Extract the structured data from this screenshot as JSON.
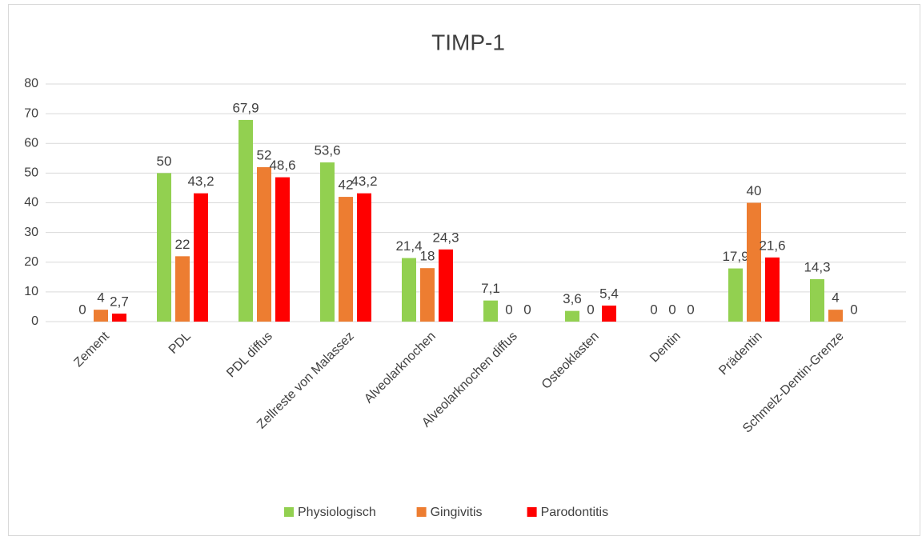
{
  "chart_data": {
    "type": "bar",
    "title": "TIMP-1",
    "categories": [
      "Zement",
      "PDL",
      "PDL diffus",
      "Zellreste von Malassez",
      "Alveolarknochen",
      "Alveolarknochen diffus",
      "Osteoklasten",
      "Dentin",
      "Prädentin",
      "Schmelz-Dentin-Grenze"
    ],
    "series": [
      {
        "name": "Physiologisch",
        "color": "#92d050",
        "values": [
          0,
          50,
          67.9,
          53.6,
          21.4,
          7.1,
          3.6,
          0,
          17.9,
          14.3
        ],
        "value_labels": [
          "0",
          "50",
          "67,9",
          "53,6",
          "21,4",
          "7,1",
          "3,6",
          "0",
          "17,9",
          "14,3"
        ]
      },
      {
        "name": "Gingivitis",
        "color": "#ed7d31",
        "values": [
          4,
          22,
          52,
          42,
          18,
          0,
          0,
          0,
          40,
          4
        ],
        "value_labels": [
          "4",
          "22",
          "52",
          "42",
          "18",
          "0",
          "0",
          "0",
          "40",
          "4"
        ]
      },
      {
        "name": "Parodontitis",
        "color": "#ff0000",
        "values": [
          2.7,
          43.2,
          48.6,
          43.2,
          24.3,
          0,
          5.4,
          0,
          21.6,
          0
        ],
        "value_labels": [
          "2,7",
          "43,2",
          "48,6",
          "43,2",
          "24,3",
          "0",
          "5,4",
          "0",
          "21,6",
          "0"
        ]
      }
    ],
    "ylim": [
      0,
      80
    ],
    "yticks": [
      0,
      10,
      20,
      30,
      40,
      50,
      60,
      70,
      80
    ],
    "grid": true,
    "legend": "bottom"
  }
}
